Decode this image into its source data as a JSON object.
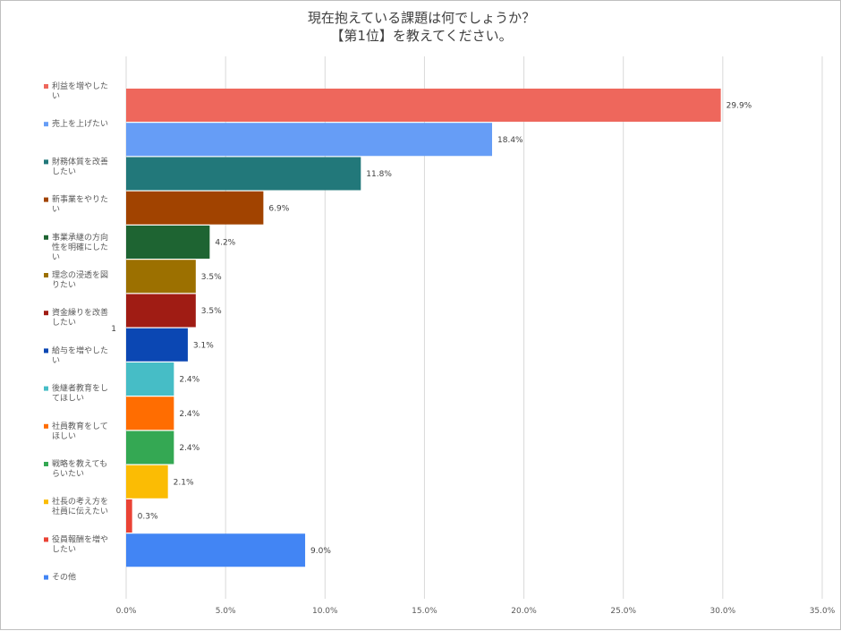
{
  "chart_data": {
    "type": "bar",
    "orientation": "horizontal",
    "title_lines": [
      "現在抱えている課題は何でしょうか？",
      "【第1位】を教えてください。"
    ],
    "axis_label": "1",
    "xlim": [
      0,
      35
    ],
    "x_ticks": [
      "0.0%",
      "5.0%",
      "10.0%",
      "15.0%",
      "20.0%",
      "25.0%",
      "30.0%",
      "35.0%"
    ],
    "grid": "vertical",
    "legend_position": "left",
    "series": [
      {
        "lines": [
          "利益を増やした",
          "い"
        ],
        "value": 29.9,
        "label": "29.9%",
        "color": "#ee675c"
      },
      {
        "lines": [
          "売上を上げたい"
        ],
        "value": 18.4,
        "label": "18.4%",
        "color": "#669df6"
      },
      {
        "lines": [
          "財務体質を改善",
          "したい"
        ],
        "value": 11.8,
        "label": "11.8%",
        "color": "#22787a"
      },
      {
        "lines": [
          "新事業をやりた",
          "い"
        ],
        "value": 6.9,
        "label": "6.9%",
        "color": "#a14300"
      },
      {
        "lines": [
          "事業承継の方向",
          "性を明確にした",
          "い"
        ],
        "value": 4.2,
        "label": "4.2%",
        "color": "#1e6432"
      },
      {
        "lines": [
          "理念の浸透を図",
          "りたい"
        ],
        "value": 3.5,
        "label": "3.5%",
        "color": "#9c7000"
      },
      {
        "lines": [
          "資金繰りを改善",
          "したい"
        ],
        "value": 3.5,
        "label": "3.5%",
        "color": "#a01c14"
      },
      {
        "lines": [
          "給与を増やした",
          "い"
        ],
        "value": 3.1,
        "label": "3.1%",
        "color": "#0b47b3"
      },
      {
        "lines": [
          "後継者教育をし",
          "てほしい"
        ],
        "value": 2.4,
        "label": "2.4%",
        "color": "#46bdc6"
      },
      {
        "lines": [
          "社員教育をして",
          "ほしい"
        ],
        "value": 2.4,
        "label": "2.4%",
        "color": "#ff6d01"
      },
      {
        "lines": [
          "戦略を教えても",
          "らいたい"
        ],
        "value": 2.4,
        "label": "2.4%",
        "color": "#34a853"
      },
      {
        "lines": [
          "社長の考え方を",
          "社員に伝えたい"
        ],
        "value": 2.1,
        "label": "2.1%",
        "color": "#fbbc04"
      },
      {
        "lines": [
          "役員報酬を増や",
          "したい"
        ],
        "value": 0.3,
        "label": "0.3%",
        "color": "#ea4335"
      },
      {
        "lines": [
          "その他"
        ],
        "value": 9.0,
        "label": "9.0%",
        "color": "#4285f4"
      }
    ]
  }
}
